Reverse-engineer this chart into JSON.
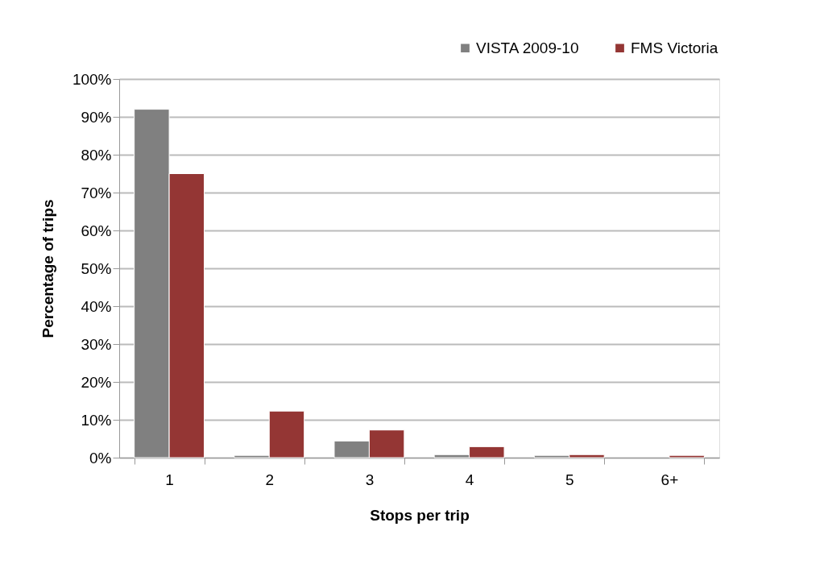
{
  "chart_data": {
    "type": "bar",
    "xlabel": "Stops per trip",
    "ylabel": "Percentage of trips",
    "categories": [
      "1",
      "2",
      "3",
      "4",
      "5",
      "6+"
    ],
    "series": [
      {
        "name": "VISTA 2009-10",
        "color": "#808080",
        "values": [
          92,
          0.6,
          4.4,
          0.8,
          0.6,
          null
        ]
      },
      {
        "name": "FMS Victoria",
        "color": "#943634",
        "values": [
          75,
          12.3,
          7.3,
          2.9,
          0.8,
          0.6
        ]
      }
    ],
    "ylim": [
      0,
      100
    ],
    "yticks": [
      {
        "value": 0,
        "label": "0%"
      },
      {
        "value": 10,
        "label": "10%"
      },
      {
        "value": 20,
        "label": "20%"
      },
      {
        "value": 30,
        "label": "30%"
      },
      {
        "value": 40,
        "label": "40%"
      },
      {
        "value": 50,
        "label": "50%"
      },
      {
        "value": 60,
        "label": "60%"
      },
      {
        "value": 70,
        "label": "70%"
      },
      {
        "value": 80,
        "label": "80%"
      },
      {
        "value": 90,
        "label": "90%"
      },
      {
        "value": 100,
        "label": "100%"
      }
    ],
    "grid": "y",
    "legend": "top right"
  }
}
